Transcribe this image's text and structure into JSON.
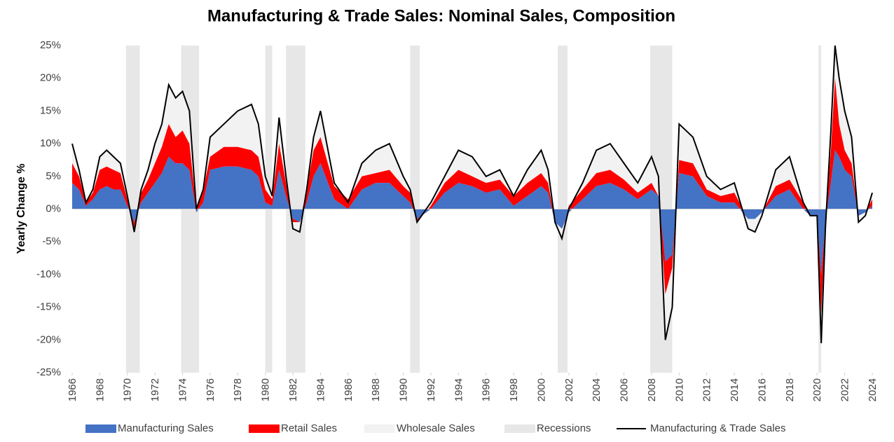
{
  "chart_data": {
    "type": "stacked-area",
    "title": "Manufacturing & Trade Sales: Nominal Sales, Composition",
    "y_label": "Yearly Change %",
    "xlim": [
      1966,
      2024
    ],
    "ylim": [
      -25,
      25
    ],
    "xticks": [
      1966,
      1968,
      1970,
      1972,
      1974,
      1976,
      1978,
      1980,
      1982,
      1984,
      1986,
      1988,
      1990,
      1992,
      1994,
      1996,
      1998,
      2000,
      2002,
      2004,
      2006,
      2008,
      2010,
      2012,
      2014,
      2016,
      2018,
      2020,
      2022,
      2024
    ],
    "yticks": [
      {
        "value": 25,
        "label": "25%"
      },
      {
        "value": 20,
        "label": "20%"
      },
      {
        "value": 15,
        "label": "15%"
      },
      {
        "value": 10,
        "label": "10%"
      },
      {
        "value": 5,
        "label": "5%"
      },
      {
        "value": 0,
        "label": "0%"
      },
      {
        "value": -5,
        "label": "-5%"
      },
      {
        "value": -10,
        "label": "-10%"
      },
      {
        "value": -15,
        "label": "-15%"
      },
      {
        "value": -20,
        "label": "-20%"
      },
      {
        "value": -25,
        "label": "-25%"
      }
    ],
    "x": [
      1966,
      1966.5,
      1967,
      1967.5,
      1968,
      1968.5,
      1969,
      1969.5,
      1970,
      1970.5,
      1971,
      1971.5,
      1972,
      1972.5,
      1973,
      1973.5,
      1974,
      1974.5,
      1975,
      1975.5,
      1976,
      1977,
      1978,
      1979,
      1979.5,
      1980,
      1980.5,
      1981,
      1981.5,
      1982,
      1982.5,
      1983,
      1983.5,
      1984,
      1985,
      1986,
      1987,
      1988,
      1989,
      1990,
      1990.5,
      1991,
      1992,
      1993,
      1994,
      1995,
      1996,
      1997,
      1998,
      1999,
      2000,
      2000.5,
      2001,
      2001.5,
      2002,
      2003,
      2004,
      2005,
      2006,
      2007,
      2008,
      2008.5,
      2009,
      2009.5,
      2010,
      2011,
      2012,
      2013,
      2014,
      2015,
      2015.5,
      2016,
      2017,
      2018,
      2019,
      2019.5,
      2020,
      2020.3,
      2020.6,
      2021,
      2021.3,
      2021.6,
      2022,
      2022.5,
      2023,
      2023.5,
      2024
    ],
    "series": [
      {
        "name": "Manufacturing Sales",
        "type": "area",
        "color": "#4472c4",
        "values": [
          4,
          3,
          0.5,
          1.5,
          3,
          3.5,
          3,
          3,
          0.5,
          -2,
          1,
          2.5,
          4,
          5.5,
          8,
          7,
          7,
          6,
          -0.5,
          1,
          6,
          6.5,
          6.5,
          6,
          5,
          1,
          0.5,
          6,
          2,
          -1.5,
          -2,
          1,
          5,
          7,
          1.5,
          0,
          3,
          4,
          4,
          2,
          1,
          -1.5,
          0,
          2.5,
          4,
          3.5,
          2.5,
          3,
          0.5,
          2,
          3.5,
          2.5,
          -2,
          -3,
          -0.5,
          1.5,
          3.5,
          4,
          3,
          1.5,
          3,
          2,
          -8,
          -7,
          5.5,
          5,
          2,
          1,
          1,
          -1.5,
          -1.5,
          -0.5,
          2,
          3,
          0,
          -1,
          -1,
          -10,
          -2,
          4,
          9,
          8,
          6,
          5,
          -1,
          -0.5,
          0.5
        ]
      },
      {
        "name": "Retail Sales",
        "type": "area",
        "color": "#ff0000",
        "values": [
          3,
          2,
          0.5,
          1,
          3,
          3,
          3,
          2.5,
          1,
          -1,
          1.5,
          2,
          3,
          4,
          5,
          4,
          5,
          4,
          0.5,
          2,
          2,
          3,
          3,
          3,
          3,
          2,
          1,
          4,
          2,
          -0.5,
          0,
          2,
          4,
          4,
          2,
          1.5,
          2,
          1.5,
          2,
          1.5,
          1.5,
          -0.5,
          0.5,
          1.5,
          2,
          1.5,
          1.5,
          1.5,
          1.5,
          2,
          2,
          1.5,
          0,
          0,
          1,
          1.5,
          2,
          2,
          1.5,
          1,
          1,
          0,
          -5,
          -2,
          2,
          2,
          1,
          1,
          1.5,
          0,
          0,
          0,
          1.5,
          1.5,
          1,
          0.5,
          0.5,
          -6,
          0,
          5,
          11,
          5,
          3,
          2,
          0,
          0,
          1
        ]
      },
      {
        "name": "Wholesale Sales",
        "type": "area",
        "color": "#f2f2f2",
        "values": [
          3,
          1,
          0,
          0.5,
          2,
          2.5,
          2,
          1.5,
          0.5,
          -0.5,
          0.5,
          1.5,
          3,
          3.5,
          6,
          6,
          6,
          5,
          0,
          0,
          3,
          3.5,
          5.5,
          7,
          5,
          2,
          0.5,
          4,
          1,
          -1,
          -1.5,
          0,
          2,
          4,
          0.5,
          -0.5,
          2,
          3.5,
          4,
          1.5,
          0.5,
          0,
          0.5,
          1,
          3,
          3,
          1,
          1.5,
          0,
          2,
          3.5,
          2,
          0,
          -1.5,
          -0.5,
          1,
          3.5,
          4,
          2.5,
          1.5,
          4,
          3,
          -7,
          -6,
          5.5,
          4,
          2,
          1,
          1.5,
          -1.5,
          -2,
          -0.5,
          2.5,
          3.5,
          0,
          -0.5,
          -0.5,
          -4.5,
          -1,
          3,
          5,
          7,
          6,
          4,
          -1,
          -0.5,
          1
        ]
      },
      {
        "name": "Manufacturing & Trade Sales",
        "type": "line",
        "color": "#000000",
        "values": [
          10,
          6,
          1,
          3,
          8,
          9,
          8,
          7,
          2,
          -3.5,
          3,
          6,
          10,
          13,
          19,
          17,
          18,
          15,
          0,
          3,
          11,
          13,
          15,
          16,
          13,
          5,
          2,
          14,
          5,
          -3,
          -3.5,
          3,
          11,
          15,
          4,
          1,
          7,
          9,
          10,
          5,
          3,
          -2,
          1,
          5,
          9,
          8,
          5,
          6,
          2,
          6,
          9,
          6,
          -2,
          -4.5,
          0,
          4,
          9,
          10,
          7,
          4,
          8,
          5,
          -20,
          -15,
          13,
          11,
          5,
          3,
          4,
          -3,
          -3.5,
          -1,
          6,
          8,
          1,
          -1,
          -1,
          -20.5,
          -3,
          12,
          25,
          20,
          15,
          11,
          -2,
          -1,
          2.5
        ]
      }
    ],
    "recessions": {
      "name": "Recessions",
      "color": "#e7e7e7",
      "periods": [
        [
          1969.9,
          1970.9
        ],
        [
          1973.9,
          1975.2
        ],
        [
          1980,
          1980.5
        ],
        [
          1981.5,
          1982.9
        ],
        [
          1990.5,
          1991.2
        ],
        [
          2001.2,
          2001.9
        ],
        [
          2007.9,
          2009.5
        ],
        [
          2020.1,
          2020.3
        ]
      ]
    }
  }
}
